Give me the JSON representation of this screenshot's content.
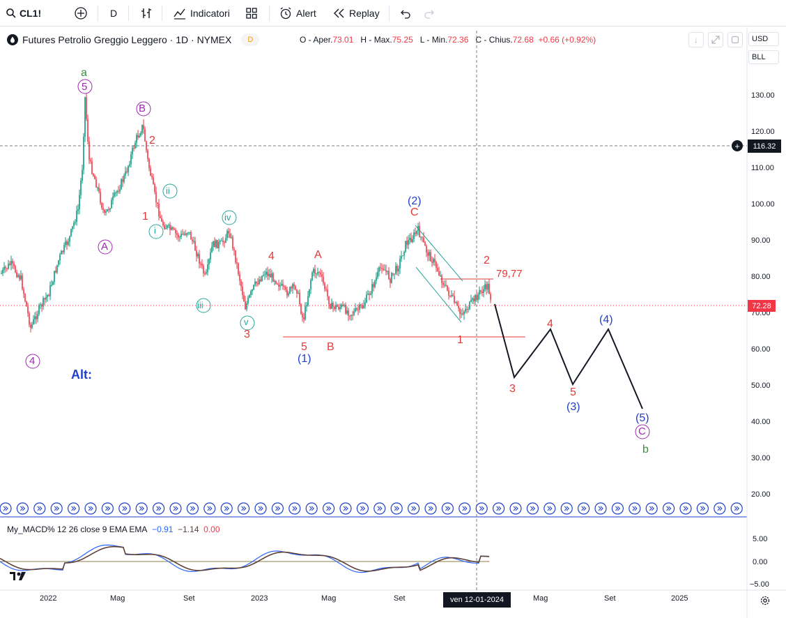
{
  "toolbar": {
    "symbol": "CL1!",
    "interval": "D",
    "indicators_label": "Indicatori",
    "alert_label": "Alert",
    "replay_label": "Replay"
  },
  "legend": {
    "title": "Futures Petrolio Greggio Leggero · 1D · NYMEX",
    "badge": "D",
    "o_label": "O - Aper.",
    "o": "73.01",
    "h_label": "H - Max.",
    "h": "75.25",
    "l_label": "L - Min.",
    "l": "72.36",
    "c_label": "C - Chius.",
    "c": "72.68",
    "change": "+0.66 (+0.92%)"
  },
  "currency": "USD",
  "unit": "BLL",
  "price_axis": [
    "130.00",
    "120.00",
    "110.00",
    "100.00",
    "90.00",
    "80.00",
    "70.00",
    "60.00",
    "50.00",
    "40.00",
    "30.00",
    "20.00"
  ],
  "crosshair_price": "116.32",
  "last_price": "72.28",
  "time_axis": [
    "2022",
    "Mag",
    "Set",
    "2023",
    "Mag",
    "Set",
    "Mag",
    "Set",
    "2025"
  ],
  "crosshair_date": "ven 12-01-2024",
  "macd": {
    "title": "My_MACD% 12 26 close 9 EMA EMA",
    "v1": "−0.91",
    "v2": "−1.14",
    "v3": "0.00",
    "axis": [
      "5.00",
      "0.00",
      "−5.00"
    ]
  },
  "annotations": {
    "alt": "Alt:",
    "level": "79,77",
    "wave_labels": [
      "a",
      "5",
      "B",
      "2",
      "ii",
      "1",
      "i",
      "A",
      "iv",
      "iii",
      "v",
      "3",
      "4",
      "A",
      "5",
      "(1)",
      "B",
      "(2)",
      "C",
      "2",
      "1",
      "4",
      "(4)",
      "3",
      "5",
      "(3)",
      "(5)",
      "C",
      "b",
      "4"
    ]
  },
  "colors": {
    "up": "#089981",
    "down": "#f23645",
    "blue": "#1e3fcc",
    "purple": "#9c27b0",
    "green": "#388e3c",
    "teal": "#26a69a",
    "red": "#e53935"
  }
}
